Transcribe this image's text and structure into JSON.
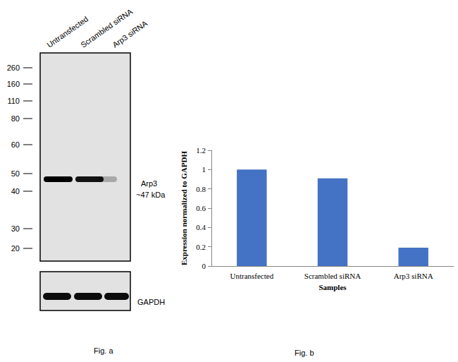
{
  "blot": {
    "title": "Fig. a",
    "lanes": [
      "Untransfected",
      "Scrambled siRNA",
      "Arp3 siRNA"
    ],
    "markers": [
      260,
      160,
      110,
      80,
      60,
      50,
      40,
      30,
      20
    ],
    "target": {
      "name": "Arp3",
      "size": "~47 kDa"
    },
    "loading_control": "GAPDH"
  },
  "chart_data": {
    "type": "bar",
    "title": "Fig. b",
    "x_label": "Samples",
    "y_label": "Expression normalized to GAPDH",
    "categories": [
      "Untransfected",
      "Scrambled siRNA",
      "Arp3 siRNA"
    ],
    "values": [
      1,
      0.91,
      0.19
    ],
    "color": "#4472c4",
    "ylim": [
      0,
      1.2
    ],
    "yticks": [
      0,
      0.2,
      0.4,
      0.6,
      0.8,
      1,
      1.2
    ],
    "grid": false
  }
}
